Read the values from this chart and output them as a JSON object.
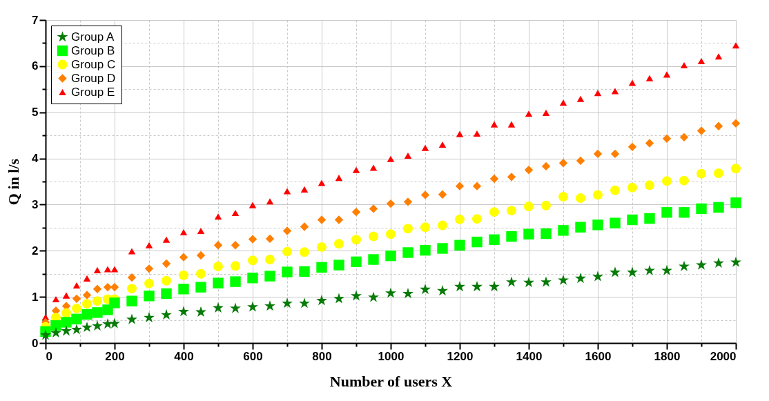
{
  "chart_data": {
    "type": "scatter",
    "xlabel": "Number of users X",
    "ylabel": "Q in l/s",
    "x": [
      0,
      30,
      60,
      90,
      120,
      150,
      180,
      200,
      250,
      300,
      350,
      400,
      450,
      500,
      550,
      600,
      650,
      700,
      750,
      800,
      850,
      900,
      950,
      1000,
      1050,
      1100,
      1150,
      1200,
      1250,
      1300,
      1350,
      1400,
      1450,
      1500,
      1550,
      1600,
      1650,
      1700,
      1750,
      1800,
      1850,
      1900,
      1950,
      2000
    ],
    "series": [
      {
        "name": "Group A",
        "color": "#077a07",
        "marker": "star",
        "values": [
          0.17,
          0.22,
          0.26,
          0.29,
          0.34,
          0.37,
          0.41,
          0.42,
          0.51,
          0.55,
          0.61,
          0.68,
          0.67,
          0.76,
          0.75,
          0.78,
          0.8,
          0.86,
          0.86,
          0.92,
          0.96,
          1.02,
          0.99,
          1.08,
          1.07,
          1.16,
          1.13,
          1.22,
          1.22,
          1.22,
          1.32,
          1.31,
          1.32,
          1.36,
          1.4,
          1.44,
          1.53,
          1.53,
          1.57,
          1.57,
          1.66,
          1.69,
          1.73,
          1.75
        ]
      },
      {
        "name": "Group B",
        "color": "#00ff00",
        "marker": "square",
        "values": [
          0.25,
          0.38,
          0.45,
          0.52,
          0.62,
          0.66,
          0.72,
          0.87,
          0.91,
          1.02,
          1.07,
          1.17,
          1.21,
          1.3,
          1.33,
          1.41,
          1.45,
          1.54,
          1.55,
          1.64,
          1.69,
          1.76,
          1.81,
          1.89,
          1.96,
          2.01,
          2.05,
          2.12,
          2.19,
          2.24,
          2.31,
          2.36,
          2.37,
          2.44,
          2.51,
          2.56,
          2.6,
          2.67,
          2.7,
          2.83,
          2.83,
          2.91,
          2.94,
          3.04
        ]
      },
      {
        "name": "Group C",
        "color": "#ffff00",
        "marker": "circle",
        "values": [
          0.35,
          0.55,
          0.65,
          0.75,
          0.85,
          0.91,
          0.95,
          0.95,
          1.18,
          1.29,
          1.35,
          1.47,
          1.5,
          1.66,
          1.67,
          1.79,
          1.81,
          1.98,
          1.97,
          2.08,
          2.15,
          2.24,
          2.31,
          2.36,
          2.48,
          2.51,
          2.55,
          2.68,
          2.69,
          2.84,
          2.87,
          2.96,
          2.98,
          3.17,
          3.14,
          3.21,
          3.31,
          3.37,
          3.42,
          3.51,
          3.52,
          3.67,
          3.68,
          3.78
        ]
      },
      {
        "name": "Group D",
        "color": "#ff7f00",
        "marker": "diamond",
        "values": [
          0.45,
          0.7,
          0.8,
          0.96,
          1.04,
          1.17,
          1.21,
          1.21,
          1.42,
          1.61,
          1.72,
          1.86,
          1.9,
          2.12,
          2.12,
          2.25,
          2.26,
          2.43,
          2.52,
          2.67,
          2.67,
          2.84,
          2.91,
          3.02,
          3.06,
          3.21,
          3.22,
          3.4,
          3.4,
          3.56,
          3.6,
          3.75,
          3.83,
          3.9,
          3.95,
          4.1,
          4.1,
          4.25,
          4.33,
          4.43,
          4.46,
          4.6,
          4.7,
          4.76
        ]
      },
      {
        "name": "Group E",
        "color": "#ff0000",
        "marker": "triangle",
        "values": [
          0.56,
          0.95,
          1.03,
          1.25,
          1.4,
          1.58,
          1.6,
          1.6,
          1.99,
          2.12,
          2.24,
          2.4,
          2.43,
          2.74,
          2.82,
          2.99,
          3.07,
          3.29,
          3.33,
          3.47,
          3.58,
          3.75,
          3.8,
          3.99,
          4.06,
          4.23,
          4.3,
          4.53,
          4.54,
          4.74,
          4.74,
          4.97,
          4.99,
          5.21,
          5.29,
          5.42,
          5.46,
          5.64,
          5.74,
          5.82,
          6.02,
          6.11,
          6.21,
          6.45
        ]
      }
    ],
    "xlim": [
      0,
      2000
    ],
    "xticks": [
      0,
      {
        "value": 100,
        "label": null
      },
      200,
      {
        "value": 300,
        "label": null
      },
      400,
      {
        "value": 500,
        "label": null
      },
      600,
      {
        "value": 700,
        "label": null
      },
      800,
      {
        "value": 900,
        "label": null
      },
      1000,
      {
        "value": 1100,
        "label": null
      },
      1200,
      {
        "value": 1300,
        "label": null
      },
      1400,
      {
        "value": 1500,
        "label": null
      },
      1600,
      {
        "value": 1700,
        "label": null
      },
      1800,
      {
        "value": 1900,
        "label": null
      },
      2000
    ],
    "ylim": [
      0,
      7
    ],
    "yticks": [
      0,
      {
        "value": 0.5,
        "label": null
      },
      1,
      {
        "value": 1.5,
        "label": null
      },
      2,
      {
        "value": 2.5,
        "label": null
      },
      3,
      {
        "value": 3.5,
        "label": null
      },
      4,
      {
        "value": 4.5,
        "label": null
      },
      5,
      {
        "value": 5.5,
        "label": null
      },
      6,
      {
        "value": 6.5,
        "label": null
      },
      7
    ],
    "grid": true,
    "legend": "top left"
  }
}
